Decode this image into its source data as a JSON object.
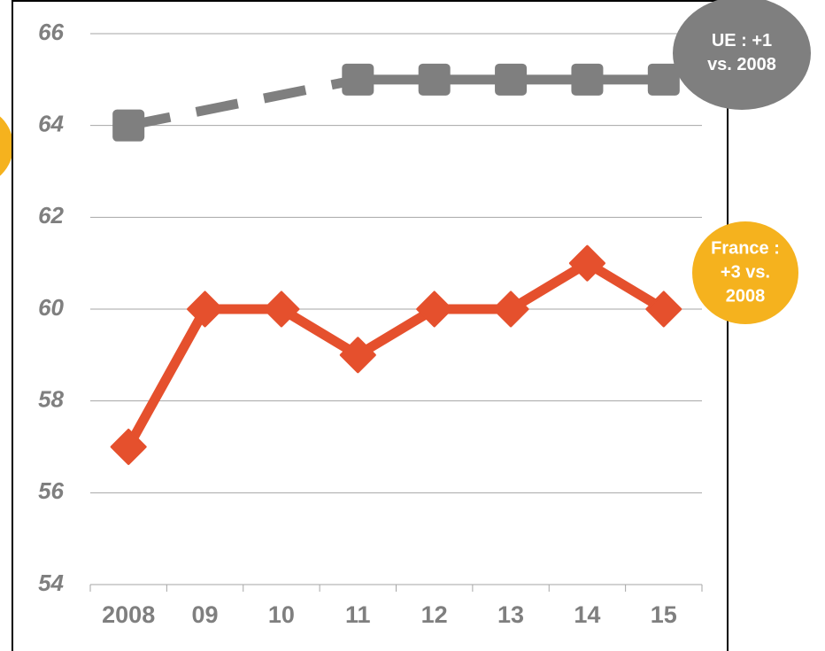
{
  "chart_data": {
    "type": "line",
    "categories": [
      "2008",
      "09",
      "10",
      "11",
      "12",
      "13",
      "14",
      "15"
    ],
    "series": [
      {
        "color": "#7f7f7f",
        "marker": "square",
        "values": [
          64,
          null,
          null,
          65,
          65,
          65,
          65,
          65
        ]
      },
      {
        "color": "#e5502d",
        "marker": "diamond",
        "values": [
          57,
          60,
          60,
          59,
          60,
          60,
          61,
          60
        ]
      }
    ],
    "ylim": [
      54,
      66
    ],
    "yticks": [
      54,
      56,
      58,
      60,
      62,
      64,
      66
    ],
    "grid": true,
    "annotations": [
      {
        "lines": [
          "UE : +1",
          "vs. 2008"
        ],
        "color": "#7f7f7f"
      },
      {
        "lines": [
          "France :",
          "+3 vs.",
          "2008"
        ],
        "color": "#f5b21e"
      }
    ]
  }
}
